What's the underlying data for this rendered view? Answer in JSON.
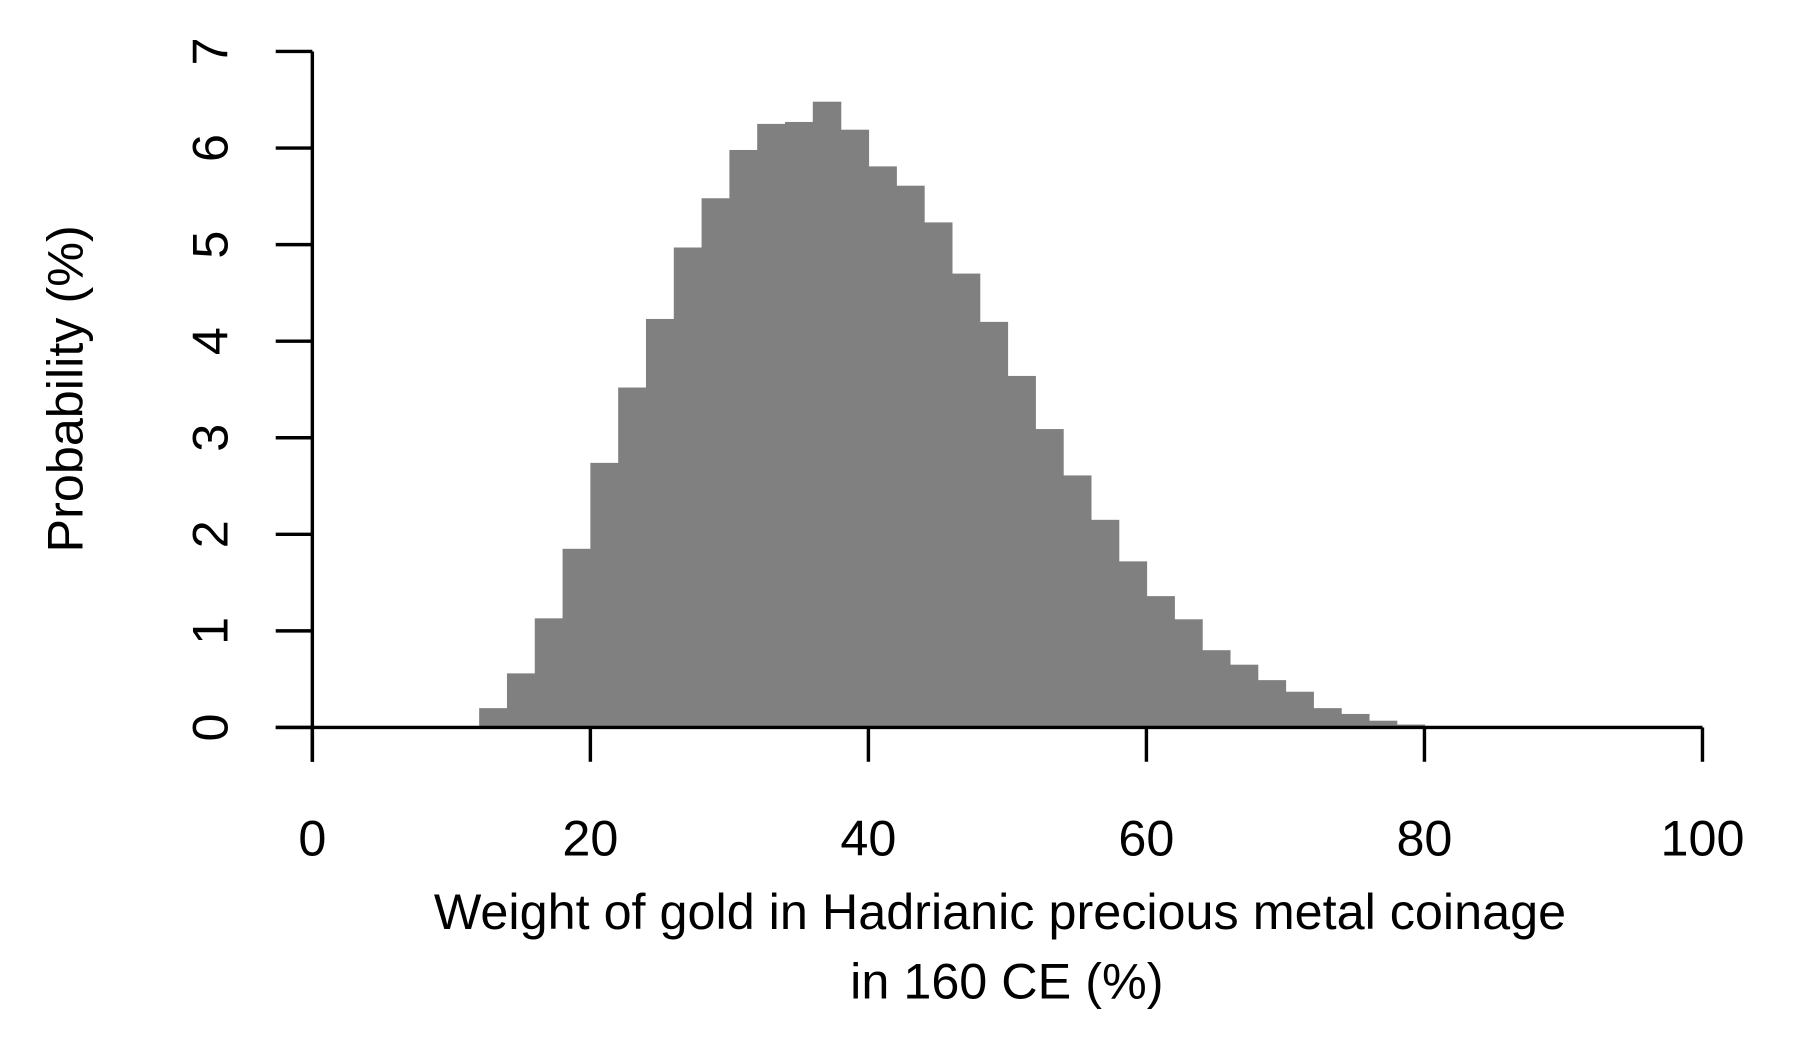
{
  "chart_data": {
    "type": "bar",
    "subtype": "histogram",
    "title": "",
    "xlabel": "Weight of gold in Hadrianic precious metal coinage\nin 160 CE (%)",
    "xlabel_lines": [
      "Weight of gold in Hadrianic precious metal coinage",
      "in 160 CE (%)"
    ],
    "ylabel": "Probability (%)",
    "xlim": [
      0,
      100
    ],
    "ylim": [
      0,
      7
    ],
    "xticks": [
      0,
      20,
      40,
      60,
      80,
      100
    ],
    "yticks": [
      0,
      1,
      2,
      3,
      4,
      5,
      6,
      7
    ],
    "grid": false,
    "legend": null,
    "bar_color": "#808080",
    "bin_width": 2,
    "bins": [
      {
        "x0": 10,
        "x1": 12,
        "value": 0.01
      },
      {
        "x0": 12,
        "x1": 14,
        "value": 0.2
      },
      {
        "x0": 14,
        "x1": 16,
        "value": 0.56
      },
      {
        "x0": 16,
        "x1": 18,
        "value": 1.13
      },
      {
        "x0": 18,
        "x1": 20,
        "value": 1.85
      },
      {
        "x0": 20,
        "x1": 22,
        "value": 2.74
      },
      {
        "x0": 22,
        "x1": 24,
        "value": 3.52
      },
      {
        "x0": 24,
        "x1": 26,
        "value": 4.23
      },
      {
        "x0": 26,
        "x1": 28,
        "value": 4.97
      },
      {
        "x0": 28,
        "x1": 30,
        "value": 5.48
      },
      {
        "x0": 30,
        "x1": 32,
        "value": 5.98
      },
      {
        "x0": 32,
        "x1": 34,
        "value": 6.25
      },
      {
        "x0": 34,
        "x1": 36,
        "value": 6.27
      },
      {
        "x0": 36,
        "x1": 38,
        "value": 6.48
      },
      {
        "x0": 38,
        "x1": 40,
        "value": 6.19
      },
      {
        "x0": 40,
        "x1": 42,
        "value": 5.81
      },
      {
        "x0": 42,
        "x1": 44,
        "value": 5.61
      },
      {
        "x0": 44,
        "x1": 46,
        "value": 5.23
      },
      {
        "x0": 46,
        "x1": 48,
        "value": 4.7
      },
      {
        "x0": 48,
        "x1": 50,
        "value": 4.2
      },
      {
        "x0": 50,
        "x1": 52,
        "value": 3.64
      },
      {
        "x0": 52,
        "x1": 54,
        "value": 3.09
      },
      {
        "x0": 54,
        "x1": 56,
        "value": 2.61
      },
      {
        "x0": 56,
        "x1": 58,
        "value": 2.15
      },
      {
        "x0": 58,
        "x1": 60,
        "value": 1.72
      },
      {
        "x0": 60,
        "x1": 62,
        "value": 1.36
      },
      {
        "x0": 62,
        "x1": 64,
        "value": 1.12
      },
      {
        "x0": 64,
        "x1": 66,
        "value": 0.8
      },
      {
        "x0": 66,
        "x1": 68,
        "value": 0.65
      },
      {
        "x0": 68,
        "x1": 70,
        "value": 0.49
      },
      {
        "x0": 70,
        "x1": 72,
        "value": 0.37
      },
      {
        "x0": 72,
        "x1": 74,
        "value": 0.2
      },
      {
        "x0": 74,
        "x1": 76,
        "value": 0.14
      },
      {
        "x0": 76,
        "x1": 78,
        "value": 0.07
      },
      {
        "x0": 78,
        "x1": 80,
        "value": 0.03
      }
    ],
    "categories": [
      "10-12",
      "12-14",
      "14-16",
      "16-18",
      "18-20",
      "20-22",
      "22-24",
      "24-26",
      "26-28",
      "28-30",
      "30-32",
      "32-34",
      "34-36",
      "36-38",
      "38-40",
      "40-42",
      "42-44",
      "44-46",
      "46-48",
      "48-50",
      "50-52",
      "52-54",
      "54-56",
      "56-58",
      "58-60",
      "60-62",
      "62-64",
      "64-66",
      "66-68",
      "68-70",
      "70-72",
      "72-74",
      "74-76",
      "76-78",
      "78-80"
    ],
    "values": [
      0.01,
      0.2,
      0.56,
      1.13,
      1.85,
      2.74,
      3.52,
      4.23,
      4.97,
      5.48,
      5.98,
      6.25,
      6.27,
      6.48,
      6.19,
      5.81,
      5.61,
      5.23,
      4.7,
      4.2,
      3.64,
      3.09,
      2.61,
      2.15,
      1.72,
      1.36,
      1.12,
      0.8,
      0.65,
      0.49,
      0.37,
      0.2,
      0.14,
      0.07,
      0.03
    ]
  }
}
